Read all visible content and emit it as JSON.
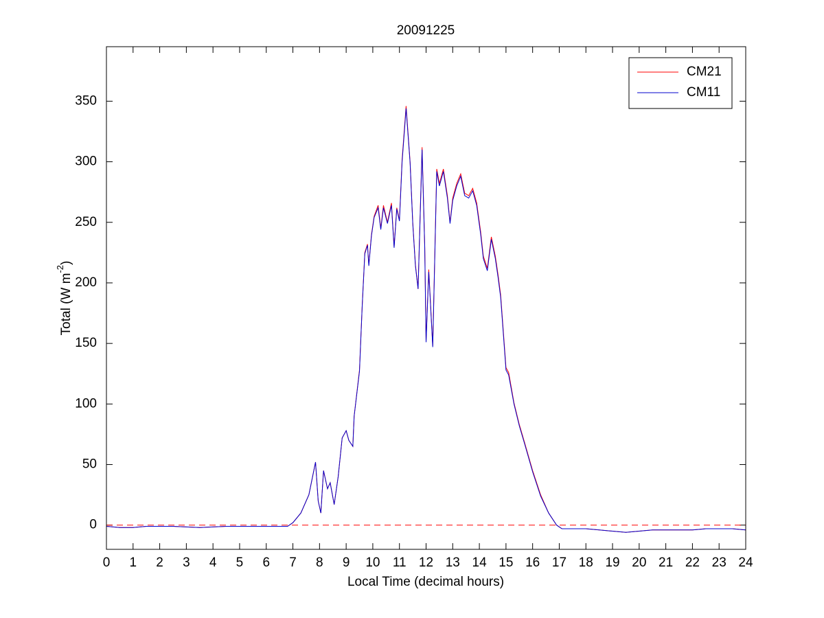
{
  "chart_data": {
    "type": "line",
    "title": "20091225",
    "xlabel": "Local Time (decimal hours)",
    "ylabel": "Total (W m",
    "ylabel_superscript": "-2",
    "ylabel_suffix": ")",
    "xlim": [
      0,
      24
    ],
    "xticks": [
      0,
      1,
      2,
      3,
      4,
      5,
      6,
      7,
      8,
      9,
      10,
      11,
      12,
      13,
      14,
      15,
      16,
      17,
      18,
      19,
      20,
      21,
      22,
      23,
      24
    ],
    "ylim": [
      -20,
      395
    ],
    "yticks": [
      0,
      50,
      100,
      150,
      200,
      250,
      300,
      350
    ],
    "legend": "northeast",
    "reference_line": {
      "value": 0,
      "color": "#ff0000",
      "style": "dashed"
    },
    "x": [
      0,
      0.5,
      1,
      1.5,
      2,
      2.5,
      3,
      3.5,
      4,
      4.5,
      5,
      5.5,
      6,
      6.5,
      6.8,
      7,
      7.3,
      7.6,
      7.85,
      7.95,
      8.05,
      8.15,
      8.3,
      8.4,
      8.55,
      8.7,
      8.85,
      9.0,
      9.1,
      9.25,
      9.3,
      9.5,
      9.6,
      9.7,
      9.8,
      9.85,
      9.95,
      10.05,
      10.2,
      10.3,
      10.4,
      10.55,
      10.7,
      10.8,
      10.9,
      11.0,
      11.1,
      11.25,
      11.4,
      11.5,
      11.6,
      11.7,
      11.85,
      11.95,
      12.0,
      12.1,
      12.15,
      12.25,
      12.4,
      12.5,
      12.65,
      12.8,
      12.9,
      13.0,
      13.15,
      13.3,
      13.45,
      13.6,
      13.75,
      13.9,
      14.05,
      14.15,
      14.3,
      14.45,
      14.6,
      14.7,
      14.8,
      14.9,
      15.0,
      15.1,
      15.3,
      15.5,
      15.7,
      16.0,
      16.3,
      16.6,
      16.9,
      17.1,
      17.5,
      18,
      18.5,
      19,
      19.5,
      20,
      20.5,
      21,
      21.5,
      22,
      22.5,
      23,
      23.5,
      24
    ],
    "series": [
      {
        "name": "CM21",
        "color": "#ff0000",
        "values": [
          -1,
          -2,
          -2,
          -1,
          -1,
          -1,
          -1.5,
          -2,
          -1.5,
          -1,
          -1,
          -1,
          -1,
          -1,
          -1,
          2,
          10,
          25,
          52,
          20,
          10,
          45,
          30,
          35,
          17,
          40,
          72,
          78,
          70,
          65,
          90,
          128,
          180,
          225,
          232,
          215,
          240,
          255,
          264,
          245,
          264,
          250,
          266,
          230,
          262,
          252,
          302,
          346,
          300,
          250,
          215,
          195,
          312,
          230,
          152,
          211,
          190,
          148,
          294,
          282,
          294,
          272,
          250,
          270,
          282,
          290,
          274,
          272,
          278,
          266,
          242,
          222,
          212,
          238,
          222,
          207,
          190,
          160,
          130,
          126,
          101,
          83,
          68,
          45,
          25,
          10,
          0,
          -3,
          -3,
          -3,
          -4,
          -5,
          -6,
          -5,
          -4,
          -4,
          -4,
          -4,
          -3,
          -3,
          -3,
          -4
        ]
      },
      {
        "name": "CM11",
        "color": "#0000cc",
        "values": [
          -1,
          -2,
          -2,
          -1,
          -1,
          -1,
          -1.5,
          -2,
          -1.5,
          -1,
          -1,
          -1,
          -1,
          -1,
          -1,
          2,
          10,
          25,
          52,
          20,
          10,
          45,
          30,
          35,
          17,
          40,
          72,
          78,
          70,
          65,
          90,
          127,
          180,
          224,
          231,
          214,
          239,
          254,
          262,
          244,
          262,
          249,
          264,
          229,
          261,
          251,
          300,
          344,
          299,
          249,
          214,
          195,
          310,
          229,
          151,
          209,
          189,
          147,
          292,
          280,
          292,
          270,
          249,
          268,
          280,
          288,
          272,
          270,
          276,
          264,
          240,
          220,
          210,
          236,
          220,
          205,
          188,
          158,
          128,
          124,
          100,
          82,
          67,
          44,
          24,
          10,
          0,
          -3,
          -3,
          -3,
          -4,
          -5,
          -6,
          -5,
          -4,
          -4,
          -4,
          -4,
          -3,
          -3,
          -3,
          -4
        ]
      }
    ]
  }
}
